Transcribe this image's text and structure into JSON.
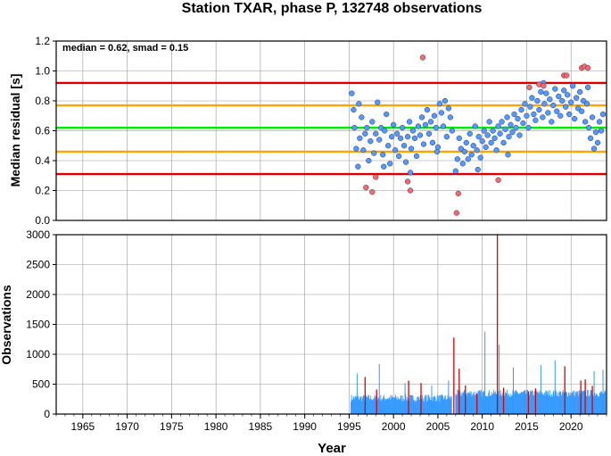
{
  "figure": {
    "title": "Station TXAR, phase P, 132748 observations",
    "xlabel": "Year"
  },
  "chart_data": [
    {
      "type": "scatter",
      "ylabel": "Median residual [s]",
      "annotation": "median = 0.62, smad = 0.15",
      "xlim": [
        1962,
        2024
      ],
      "ylim": [
        0.0,
        1.2
      ],
      "x_ticks": [
        1965,
        1970,
        1975,
        1980,
        1985,
        1990,
        1995,
        2000,
        2005,
        2010,
        2015,
        2020
      ],
      "y_ticks": [
        "0.0",
        "0.2",
        "0.4",
        "0.6",
        "0.8",
        "1.0",
        "1.2"
      ],
      "grid": true,
      "reference_lines": [
        {
          "y": 0.62,
          "color": "#00ee00"
        },
        {
          "y": 0.77,
          "color": "#ffa500"
        },
        {
          "y": 0.46,
          "color": "#ffa500"
        },
        {
          "y": 0.92,
          "color": "#dd0000"
        },
        {
          "y": 0.31,
          "color": "#dd0000"
        }
      ],
      "series": [
        {
          "color": "#5599ff",
          "points": [
            [
              1995.3,
              0.85
            ],
            [
              1995.5,
              0.74
            ],
            [
              1995.6,
              0.62
            ],
            [
              1995.8,
              0.48
            ],
            [
              1996.0,
              0.36
            ],
            [
              1996.2,
              0.55
            ],
            [
              1996.4,
              0.69
            ],
            [
              1996.6,
              0.47
            ],
            [
              1996.8,
              0.58
            ],
            [
              1997.0,
              0.62
            ],
            [
              1997.2,
              0.4
            ],
            [
              1997.4,
              0.53
            ],
            [
              1997.6,
              0.66
            ],
            [
              1997.8,
              0.45
            ],
            [
              1998.0,
              0.58
            ],
            [
              1998.2,
              0.79
            ],
            [
              1998.4,
              0.54
            ],
            [
              1998.6,
              0.62
            ],
            [
              1998.8,
              0.44
            ],
            [
              1999.0,
              0.6
            ],
            [
              1999.2,
              0.71
            ],
            [
              1999.4,
              0.5
            ],
            [
              1999.6,
              0.38
            ],
            [
              1999.8,
              0.56
            ],
            [
              2000.0,
              0.64
            ],
            [
              2000.2,
              0.47
            ],
            [
              2000.4,
              0.58
            ],
            [
              2000.6,
              0.43
            ],
            [
              2000.8,
              0.55
            ],
            [
              2001.0,
              0.62
            ],
            [
              2001.2,
              0.5
            ],
            [
              2001.4,
              0.39
            ],
            [
              2001.6,
              0.56
            ],
            [
              2001.8,
              0.66
            ],
            [
              2002.0,
              0.48
            ],
            [
              2002.2,
              0.6
            ],
            [
              2002.4,
              0.55
            ],
            [
              2002.6,
              0.43
            ],
            [
              2002.8,
              0.63
            ],
            [
              2003.0,
              0.57
            ],
            [
              2003.2,
              0.69
            ],
            [
              2003.4,
              0.51
            ],
            [
              2003.6,
              0.64
            ],
            [
              2003.8,
              0.74
            ],
            [
              2004.0,
              0.58
            ],
            [
              2004.2,
              0.66
            ],
            [
              2004.4,
              0.52
            ],
            [
              2004.6,
              0.7
            ],
            [
              2004.8,
              0.62
            ],
            [
              2005.0,
              0.49
            ],
            [
              2005.2,
              0.78
            ],
            [
              2005.4,
              0.72
            ],
            [
              2005.6,
              0.63
            ],
            [
              2005.8,
              0.8
            ],
            [
              2006.0,
              0.56
            ],
            [
              2006.2,
              0.75
            ],
            [
              2006.4,
              0.69
            ],
            [
              2006.6,
              0.6
            ],
            [
              2007.0,
              0.33
            ],
            [
              2007.2,
              0.41
            ],
            [
              2007.4,
              0.55
            ],
            [
              2007.6,
              0.48
            ],
            [
              2007.8,
              0.38
            ],
            [
              2008.0,
              0.46
            ],
            [
              2008.2,
              0.52
            ],
            [
              2008.4,
              0.41
            ],
            [
              2008.6,
              0.58
            ],
            [
              2008.8,
              0.44
            ],
            [
              2009.0,
              0.5
            ],
            [
              2009.2,
              0.63
            ],
            [
              2009.4,
              0.47
            ],
            [
              2009.6,
              0.56
            ],
            [
              2009.8,
              0.42
            ],
            [
              2010.0,
              0.53
            ],
            [
              2010.2,
              0.6
            ],
            [
              2010.4,
              0.49
            ],
            [
              2010.6,
              0.57
            ],
            [
              2010.8,
              0.66
            ],
            [
              2011.0,
              0.52
            ],
            [
              2011.2,
              0.6
            ],
            [
              2011.4,
              0.55
            ],
            [
              2011.6,
              0.47
            ],
            [
              2011.8,
              0.63
            ],
            [
              2012.0,
              0.58
            ],
            [
              2012.2,
              0.66
            ],
            [
              2012.4,
              0.52
            ],
            [
              2012.6,
              0.61
            ],
            [
              2012.8,
              0.69
            ],
            [
              2013.0,
              0.56
            ],
            [
              2013.2,
              0.64
            ],
            [
              2013.4,
              0.59
            ],
            [
              2013.6,
              0.71
            ],
            [
              2013.8,
              0.62
            ],
            [
              2014.0,
              0.68
            ],
            [
              2014.2,
              0.57
            ],
            [
              2014.4,
              0.74
            ],
            [
              2014.6,
              0.65
            ],
            [
              2014.8,
              0.78
            ],
            [
              2015.0,
              0.7
            ],
            [
              2015.2,
              0.62
            ],
            [
              2015.4,
              0.76
            ],
            [
              2015.6,
              0.82
            ],
            [
              2015.8,
              0.71
            ],
            [
              2016.0,
              0.67
            ],
            [
              2016.2,
              0.8
            ],
            [
              2016.4,
              0.74
            ],
            [
              2016.6,
              0.86
            ],
            [
              2016.8,
              0.69
            ],
            [
              2017.0,
              0.78
            ],
            [
              2017.2,
              0.85
            ],
            [
              2017.4,
              0.72
            ],
            [
              2017.6,
              0.81
            ],
            [
              2017.8,
              0.66
            ],
            [
              2018.0,
              0.77
            ],
            [
              2018.2,
              0.88
            ],
            [
              2018.4,
              0.73
            ],
            [
              2018.6,
              0.83
            ],
            [
              2018.8,
              0.7
            ],
            [
              2019.0,
              0.8
            ],
            [
              2019.2,
              0.87
            ],
            [
              2019.4,
              0.76
            ],
            [
              2019.6,
              0.84
            ],
            [
              2019.8,
              0.71
            ],
            [
              2020.0,
              0.79
            ],
            [
              2020.2,
              0.9
            ],
            [
              2020.4,
              0.68
            ],
            [
              2020.6,
              0.82
            ],
            [
              2020.8,
              0.75
            ],
            [
              2021.0,
              0.86
            ],
            [
              2021.2,
              0.73
            ],
            [
              2021.4,
              0.8
            ],
            [
              2021.6,
              0.66
            ],
            [
              2021.8,
              0.78
            ],
            [
              2022.0,
              0.62
            ],
            [
              2022.2,
              0.55
            ],
            [
              2022.4,
              0.69
            ],
            [
              2022.6,
              0.48
            ],
            [
              2022.8,
              0.59
            ],
            [
              2023.0,
              0.52
            ],
            [
              2023.2,
              0.66
            ],
            [
              2023.4,
              0.6
            ],
            [
              2023.6,
              0.71
            ],
            [
              1996.1,
              0.78
            ],
            [
              1998.9,
              0.36
            ],
            [
              2001.9,
              0.32
            ],
            [
              2004.9,
              0.46
            ],
            [
              2009.5,
              0.34
            ],
            [
              2012.9,
              0.44
            ],
            [
              2016.9,
              0.92
            ],
            [
              2021.9,
              0.89
            ]
          ]
        },
        {
          "color": "#ff6666",
          "points": [
            [
              1996.9,
              0.22
            ],
            [
              1997.6,
              0.19
            ],
            [
              1998.0,
              0.29
            ],
            [
              2001.6,
              0.26
            ],
            [
              2001.9,
              0.2
            ],
            [
              2003.3,
              1.09
            ],
            [
              2007.1,
              0.05
            ],
            [
              2007.3,
              0.18
            ],
            [
              2011.8,
              0.27
            ],
            [
              2015.3,
              0.89
            ],
            [
              2016.4,
              0.91
            ],
            [
              2019.2,
              0.97
            ],
            [
              2019.5,
              0.97
            ],
            [
              2021.2,
              1.02
            ],
            [
              2021.5,
              1.03
            ],
            [
              2021.9,
              1.02
            ],
            [
              2016.9,
              0.9
            ]
          ]
        }
      ]
    },
    {
      "type": "bar",
      "ylabel": "Observations",
      "xlim": [
        1962,
        2024
      ],
      "ylim": [
        0,
        3000
      ],
      "x_ticks": [
        1965,
        1970,
        1975,
        1980,
        1985,
        1990,
        1995,
        2000,
        2005,
        2010,
        2015,
        2020
      ],
      "y_ticks": [
        0,
        500,
        1000,
        1500,
        2000,
        2500,
        3000
      ],
      "grid": true,
      "series": [
        {
          "color": "#3399ff",
          "segments": [
            {
              "start": 1995.2,
              "end": 2006.6,
              "base": 250,
              "amp": 120
            },
            {
              "start": 2007.0,
              "end": 2023.9,
              "base": 330,
              "amp": 120
            }
          ],
          "peaks": [
            [
              1995.9,
              680
            ],
            [
              1998.4,
              840
            ],
            [
              2001.3,
              520
            ],
            [
              2004.3,
              480
            ],
            [
              2006.2,
              560
            ],
            [
              2010.3,
              1380
            ],
            [
              2011.9,
              1160
            ],
            [
              2013.5,
              780
            ],
            [
              2016.6,
              820
            ],
            [
              2018.2,
              900
            ],
            [
              2022.6,
              720
            ],
            [
              2023.6,
              740
            ]
          ]
        },
        {
          "color": "#dd0000",
          "spikes": [
            [
              1996.8,
              620
            ],
            [
              1998.1,
              410
            ],
            [
              2001.7,
              560
            ],
            [
              2003.1,
              520
            ],
            [
              2006.8,
              1280
            ],
            [
              2007.4,
              760
            ],
            [
              2008.1,
              480
            ],
            [
              2009.4,
              340
            ],
            [
              2011.7,
              3000
            ],
            [
              2012.4,
              440
            ],
            [
              2015.2,
              380
            ],
            [
              2016.0,
              430
            ],
            [
              2019.3,
              800
            ],
            [
              2021.1,
              560
            ],
            [
              2021.6,
              580
            ],
            [
              2022.4,
              470
            ]
          ]
        }
      ]
    }
  ]
}
